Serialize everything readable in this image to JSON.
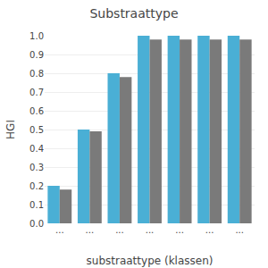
{
  "chart_data": {
    "type": "bar",
    "title": "Substraattype",
    "xlabel": "substraattype (klassen)",
    "ylabel": "HGI",
    "categories": [
      "...",
      "...",
      "...",
      "...",
      "...",
      "...",
      "..."
    ],
    "series": [
      {
        "color": "#4aafd5",
        "values": [
          0.2,
          0.5,
          0.8,
          1.0,
          1.0,
          1.0,
          1.0
        ]
      },
      {
        "color": "#7a7a7a",
        "values": [
          0.18,
          0.49,
          0.78,
          0.98,
          0.98,
          0.98,
          0.98
        ]
      }
    ],
    "ylim": [
      0.0,
      1.0
    ],
    "yticks": [
      {
        "value": 0.0,
        "label": "0.0"
      },
      0.1,
      0.2,
      0.3,
      0.4,
      0.5,
      0.6,
      0.7,
      0.8,
      0.9,
      {
        "value": 1.0,
        "label": "1.0"
      }
    ],
    "grid": true
  }
}
